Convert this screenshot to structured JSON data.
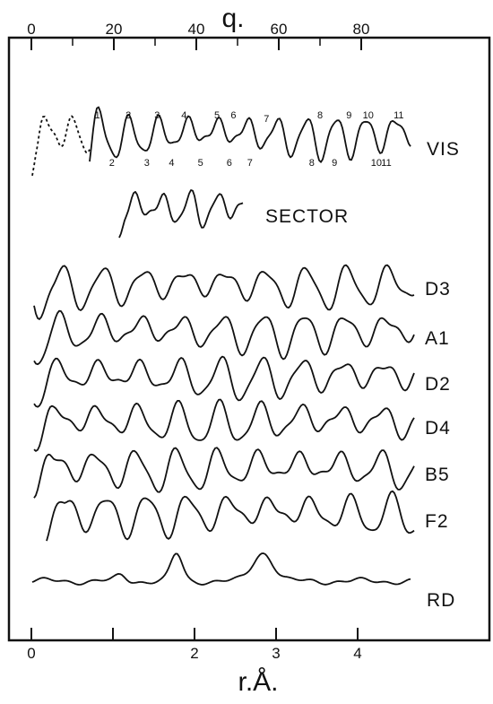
{
  "chart_data": {
    "type": "line",
    "top_axis": {
      "label": "q.",
      "ticks": [
        "0",
        "20",
        "40",
        "60",
        "80"
      ],
      "tick_values": [
        0,
        20,
        40,
        60,
        80
      ],
      "range": [
        0,
        90
      ]
    },
    "bottom_axis": {
      "label": "r.Å.",
      "ticks": [
        "0",
        "2",
        "3",
        "4"
      ],
      "tick_values": [
        0,
        2,
        3,
        4
      ],
      "range": [
        0,
        4.6
      ]
    },
    "vis_maxima_labels": [
      "1",
      "2",
      "3",
      "4",
      "5",
      "6",
      "7",
      "8",
      "9",
      "10",
      "11"
    ],
    "vis_maxima_q": [
      16,
      23.5,
      30.5,
      37,
      45,
      49,
      57,
      70,
      77,
      81,
      88.5
    ],
    "vis_minima_labels": [
      "2",
      "3",
      "4",
      "5",
      "6",
      "7",
      "8",
      "9",
      "10",
      "11"
    ],
    "vis_minima_q": [
      19.5,
      28,
      34,
      41,
      48,
      53,
      68,
      73.5,
      83,
      85.5
    ],
    "series": [
      {
        "name": "VIS"
      },
      {
        "name": "SECTOR"
      },
      {
        "name": "D3"
      },
      {
        "name": "A1"
      },
      {
        "name": "D2"
      },
      {
        "name": "D4"
      },
      {
        "name": "B5"
      },
      {
        "name": "F2"
      },
      {
        "name": "RD"
      }
    ],
    "rd_peaks_r": [
      1.1,
      1.78,
      2.84
    ],
    "grid": false
  }
}
